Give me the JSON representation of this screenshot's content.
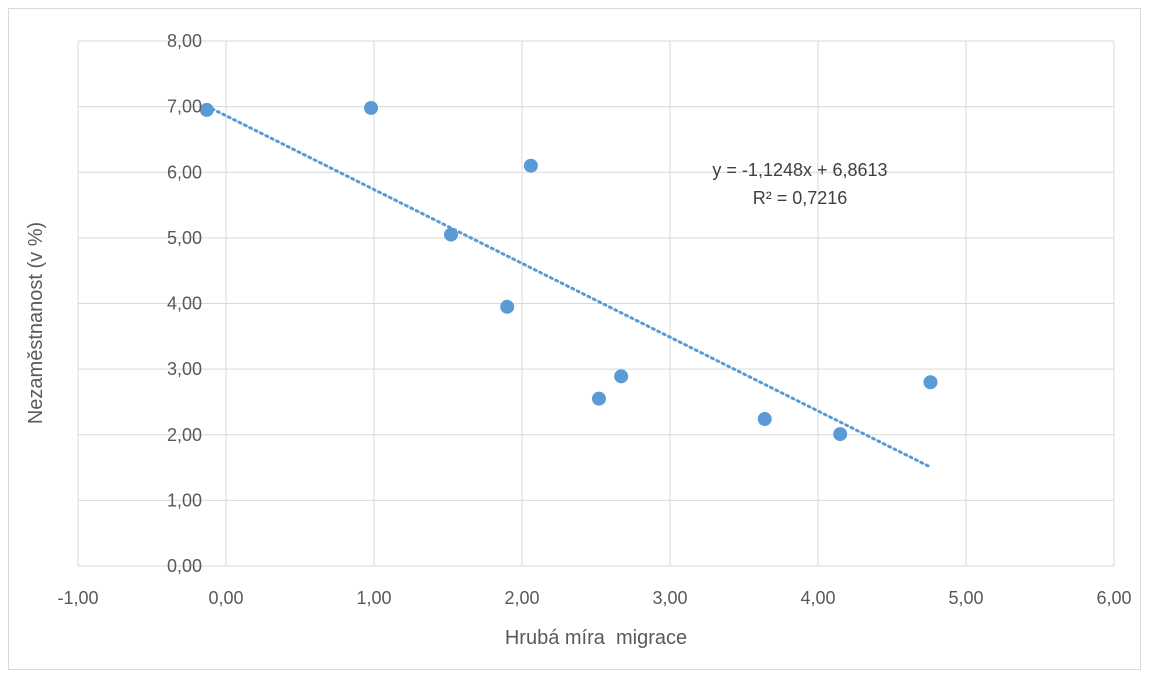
{
  "chart_data": {
    "type": "scatter",
    "title": "",
    "xlabel": "Hrubá míra  migrace",
    "ylabel": "Nezaměstnanost (v %)",
    "xlim": [
      -1,
      6
    ],
    "ylim": [
      0,
      8
    ],
    "x_ticks": [
      "-1,00",
      "0,00",
      "1,00",
      "2,00",
      "3,00",
      "4,00",
      "5,00",
      "6,00"
    ],
    "y_ticks": [
      "0,00",
      "1,00",
      "2,00",
      "3,00",
      "4,00",
      "5,00",
      "6,00",
      "7,00",
      "8,00"
    ],
    "grid": true,
    "series": [
      {
        "points": [
          {
            "x": -0.13,
            "y": 6.95
          },
          {
            "x": 0.98,
            "y": 6.98
          },
          {
            "x": 1.52,
            "y": 5.05
          },
          {
            "x": 1.9,
            "y": 3.95
          },
          {
            "x": 2.06,
            "y": 6.1
          },
          {
            "x": 2.52,
            "y": 2.55
          },
          {
            "x": 2.67,
            "y": 2.89
          },
          {
            "x": 3.64,
            "y": 2.24
          },
          {
            "x": 4.15,
            "y": 2.01
          },
          {
            "x": 4.76,
            "y": 2.8
          }
        ],
        "color": "#5b9bd5"
      }
    ],
    "trendline": {
      "slope": -1.1248,
      "intercept": 6.8613,
      "x_range": [
        -0.13,
        4.76
      ],
      "style": "dotted",
      "color": "#5b9bd5",
      "equation_label": "y = -1,1248x + 6,8613",
      "r2_label": "R² = 0,7216"
    },
    "gridline_color": "#d9d9d9"
  }
}
